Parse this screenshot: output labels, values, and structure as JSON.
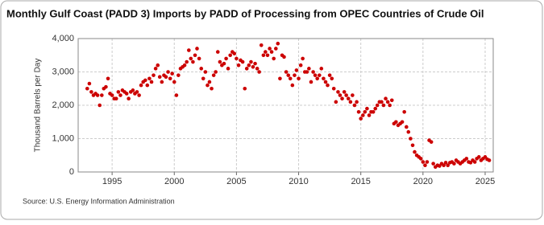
{
  "chart_data": {
    "type": "scatter",
    "title": "Monthly Gulf Coast (PADD 3) Imports by PADD of Processing from OPEC Countries of Crude Oil",
    "y_label": "Thousand Barrels per Day",
    "source": "Source: U.S. Energy Information Administration",
    "color": "#cc0000",
    "grid": true,
    "xlim": [
      1992.27,
      2025.65
    ],
    "xticks": [
      1995,
      2000,
      2005,
      2010,
      2015,
      2020,
      2025
    ],
    "ylim": [
      0,
      4000
    ],
    "yticks": [
      0,
      {
        "value": 1000,
        "label": "1,000"
      },
      {
        "value": 2000,
        "label": "2,000"
      },
      {
        "value": 3000,
        "label": "3,000"
      },
      {
        "value": 4000,
        "label": "4,000"
      }
    ],
    "x": [
      1993,
      1993.17,
      1993.33,
      1993.5,
      1993.67,
      1993.83,
      1994,
      1994.17,
      1994.33,
      1994.5,
      1994.67,
      1994.83,
      1995,
      1995.17,
      1995.33,
      1995.5,
      1995.67,
      1995.83,
      1996,
      1996.17,
      1996.33,
      1996.5,
      1996.67,
      1996.83,
      1997,
      1997.17,
      1997.33,
      1997.5,
      1997.67,
      1997.83,
      1998,
      1998.17,
      1998.33,
      1998.5,
      1998.67,
      1998.83,
      1999,
      1999.17,
      1999.33,
      1999.5,
      1999.67,
      1999.83,
      2000,
      2000.17,
      2000.33,
      2000.5,
      2000.67,
      2000.83,
      2001,
      2001.17,
      2001.33,
      2001.5,
      2001.67,
      2001.83,
      2002,
      2002.17,
      2002.33,
      2002.5,
      2002.67,
      2002.83,
      2003,
      2003.17,
      2003.33,
      2003.5,
      2003.67,
      2003.83,
      2004,
      2004.17,
      2004.33,
      2004.5,
      2004.67,
      2004.83,
      2005,
      2005.17,
      2005.33,
      2005.5,
      2005.67,
      2005.83,
      2006,
      2006.17,
      2006.33,
      2006.5,
      2006.67,
      2006.83,
      2007,
      2007.17,
      2007.33,
      2007.5,
      2007.67,
      2007.83,
      2008,
      2008.17,
      2008.33,
      2008.5,
      2008.67,
      2008.83,
      2009,
      2009.17,
      2009.33,
      2009.5,
      2009.67,
      2009.83,
      2010,
      2010.17,
      2010.33,
      2010.5,
      2010.67,
      2010.83,
      2011,
      2011.17,
      2011.33,
      2011.5,
      2011.67,
      2011.83,
      2012,
      2012.17,
      2012.33,
      2012.5,
      2012.67,
      2012.83,
      2013,
      2013.17,
      2013.33,
      2013.5,
      2013.67,
      2013.83,
      2014,
      2014.17,
      2014.33,
      2014.5,
      2014.67,
      2014.83,
      2015,
      2015.17,
      2015.33,
      2015.5,
      2015.67,
      2015.83,
      2016,
      2016.17,
      2016.33,
      2016.5,
      2016.67,
      2016.83,
      2017,
      2017.17,
      2017.33,
      2017.5,
      2017.67,
      2017.83,
      2018,
      2018.17,
      2018.33,
      2018.5,
      2018.67,
      2018.83,
      2019,
      2019.17,
      2019.33,
      2019.5,
      2019.67,
      2019.83,
      2020,
      2020.17,
      2020.33,
      2020.5,
      2020.67,
      2020.83,
      2021,
      2021.17,
      2021.33,
      2021.5,
      2021.67,
      2021.83,
      2022,
      2022.17,
      2022.33,
      2022.5,
      2022.67,
      2022.83,
      2023,
      2023.17,
      2023.33,
      2023.5,
      2023.67,
      2023.83,
      2024,
      2024.17,
      2024.33,
      2024.5,
      2024.67,
      2024.83,
      2025,
      2025.17,
      2025.33
    ],
    "values": [
      2500,
      2650,
      2400,
      2300,
      2350,
      2300,
      2000,
      2300,
      2500,
      2550,
      2800,
      2350,
      2300,
      2200,
      2200,
      2400,
      2300,
      2450,
      2400,
      2350,
      2200,
      2400,
      2450,
      2350,
      2400,
      2300,
      2600,
      2700,
      2750,
      2600,
      2800,
      2700,
      2900,
      3100,
      3200,
      2850,
      2700,
      2900,
      2850,
      3000,
      2800,
      2950,
      2700,
      2300,
      2900,
      3100,
      3150,
      3200,
      3300,
      3650,
      3400,
      3300,
      3500,
      3700,
      3400,
      3100,
      2800,
      3000,
      2600,
      2700,
      2500,
      2900,
      3000,
      3600,
      3300,
      3200,
      3250,
      3400,
      3100,
      3500,
      3600,
      3550,
      3400,
      3200,
      3350,
      3300,
      2500,
      3100,
      3200,
      3300,
      3150,
      3250,
      3100,
      3000,
      3800,
      3500,
      3600,
      3500,
      3700,
      3600,
      3400,
      3700,
      3850,
      2800,
      3500,
      3450,
      3000,
      2900,
      2800,
      2600,
      2900,
      3050,
      2800,
      3200,
      3400,
      3000,
      3000,
      3100,
      2700,
      3000,
      2900,
      2800,
      2900,
      3100,
      2800,
      2700,
      2600,
      2900,
      2800,
      2500,
      2100,
      2400,
      2300,
      2200,
      2400,
      2300,
      2200,
      2100,
      2300,
      2000,
      2100,
      1800,
      1600,
      1700,
      1800,
      1900,
      1700,
      1800,
      1800,
      1900,
      2000,
      2100,
      2100,
      2000,
      2200,
      2100,
      2000,
      2150,
      1450,
      1500,
      1400,
      1450,
      1500,
      1800,
      1350,
      1200,
      1000,
      800,
      600,
      500,
      450,
      400,
      300,
      200,
      300,
      950,
      900,
      250,
      150,
      200,
      180,
      250,
      200,
      280,
      200,
      280,
      300,
      250,
      350,
      300,
      250,
      300,
      350,
      400,
      300,
      280,
      350,
      300,
      400,
      450,
      350,
      400,
      450,
      380,
      350
    ]
  }
}
